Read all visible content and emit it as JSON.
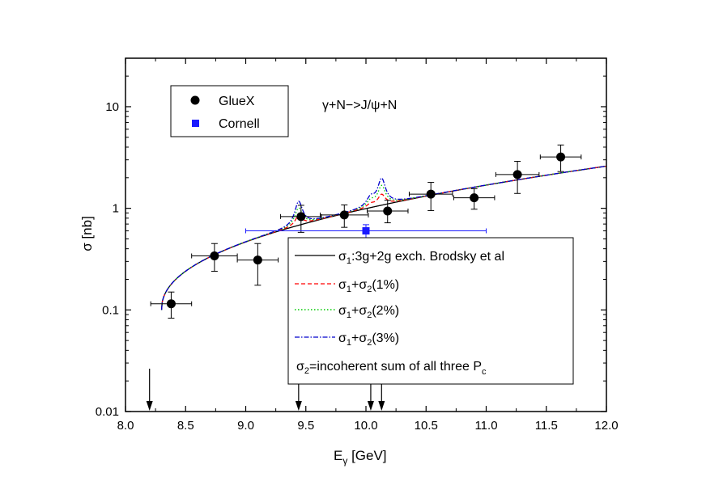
{
  "chart_data": {
    "type": "scatter",
    "title": "",
    "annotation": "γ+N−>J/ψ+N",
    "xlabel": {
      "main": "E",
      "sub": "γ",
      "unit": " [GeV]"
    },
    "ylabel": "σ [nb]",
    "xlim": [
      8.0,
      12.0
    ],
    "ylim": [
      0.01,
      30
    ],
    "yscale": "log",
    "x_ticks": [
      "8.0",
      "8.5",
      "9.0",
      "9.5",
      "10.0",
      "10.5",
      "11.0",
      "11.5",
      "12.0"
    ],
    "y_ticks": [
      "0.01",
      "0.1",
      "1",
      "10"
    ],
    "gluex": {
      "name": "GlueX",
      "color": "#000000",
      "points": [
        {
          "x": 8.38,
          "y": 0.115,
          "xerr": 0.17,
          "ylo": 0.083,
          "yhi": 0.15
        },
        {
          "x": 8.74,
          "y": 0.34,
          "xerr": 0.19,
          "ylo": 0.24,
          "yhi": 0.45
        },
        {
          "x": 9.1,
          "y": 0.31,
          "xerr": 0.17,
          "ylo": 0.175,
          "yhi": 0.45
        },
        {
          "x": 9.46,
          "y": 0.83,
          "xerr": 0.17,
          "ylo": 0.58,
          "yhi": 1.07
        },
        {
          "x": 9.82,
          "y": 0.86,
          "xerr": 0.2,
          "ylo": 0.65,
          "yhi": 1.08
        },
        {
          "x": 10.18,
          "y": 0.94,
          "xerr": 0.17,
          "ylo": 0.72,
          "yhi": 1.2
        },
        {
          "x": 10.54,
          "y": 1.38,
          "xerr": 0.18,
          "ylo": 0.95,
          "yhi": 1.8
        },
        {
          "x": 10.9,
          "y": 1.27,
          "xerr": 0.17,
          "ylo": 0.98,
          "yhi": 1.56
        },
        {
          "x": 11.26,
          "y": 2.15,
          "xerr": 0.18,
          "ylo": 1.4,
          "yhi": 2.9
        },
        {
          "x": 11.62,
          "y": 3.2,
          "xerr": 0.17,
          "ylo": 2.3,
          "yhi": 4.2
        }
      ]
    },
    "cornell": {
      "name": "Cornell",
      "color": "#1a1aff",
      "points": [
        {
          "x": 10.0,
          "y": 0.6,
          "xlo": 9.0,
          "xhi": 11.0,
          "ylo": 0.51,
          "yhi": 0.69
        }
      ]
    },
    "curves": [
      {
        "name": "σ1:3g+2g exch. Brodsky et al",
        "color": "#000000",
        "style": "solid",
        "peak_scale": 0
      },
      {
        "name": "σ1+σ2(1%)",
        "color": "#ff0000",
        "style": "dashed",
        "peak_scale": 1
      },
      {
        "name": "σ1+σ2(2%)",
        "color": "#00cc00",
        "style": "dotted",
        "peak_scale": 2
      },
      {
        "name": "σ1+σ2(3%)",
        "color": "#0000cc",
        "style": "dashdot",
        "peak_scale": 3
      }
    ],
    "baseline_model": {
      "x_start": 8.3,
      "y_start": 0.1,
      "x_ref": 12.0,
      "y_ref": 2.6
    },
    "resonances": [
      {
        "x": 9.44,
        "width": 0.035,
        "height_per_percent": 0.24
      },
      {
        "x": 10.04,
        "width": 0.04,
        "height_per_percent": 0.08
      },
      {
        "x": 10.13,
        "width": 0.035,
        "height_per_percent": 0.27
      }
    ],
    "arrows_x": [
      8.2,
      9.44,
      10.04,
      10.13
    ],
    "note": {
      "main": "σ",
      "sub": "2",
      "text": "=incoherent sum of all three P",
      "sub2": "c"
    }
  },
  "legend_top": {
    "gluex_label": "GlueX",
    "cornell_label": "Cornell"
  },
  "legend_bottom": {
    "rows": [
      {
        "main": "σ",
        "sub": "1",
        "rest": ":3g+2g exch. Brodsky et al"
      },
      {
        "main": "σ",
        "sub": "1",
        "mid": "+σ",
        "sub2": "2",
        "rest": "(1%)"
      },
      {
        "main": "σ",
        "sub": "1",
        "mid": "+σ",
        "sub2": "2",
        "rest": "(2%)"
      },
      {
        "main": "σ",
        "sub": "1",
        "mid": "+σ",
        "sub2": "2",
        "rest": "(3%)"
      }
    ]
  }
}
